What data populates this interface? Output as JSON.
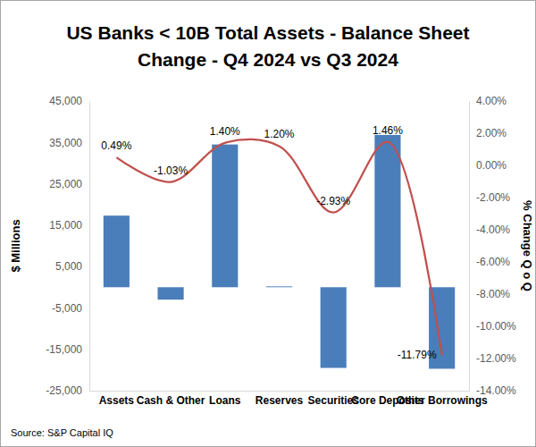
{
  "chart_data": {
    "type": "bar",
    "title": [
      "US Banks < 10B Total Assets - Balance Sheet",
      "Change - Q4 2024 vs Q3 2024"
    ],
    "ylabel": "$ Millions",
    "y2label": "% Change Q o Q",
    "source": "Source: S&P Capital IQ",
    "categories": [
      "Assets",
      "Cash & Other",
      "Loans",
      "Reserves",
      "Securities",
      "Core Deposits",
      "Other Borrowings"
    ],
    "ylim": [
      -25000,
      45000
    ],
    "yticks": [
      {
        "value": -25000,
        "label": "-25,000"
      },
      {
        "value": -15000,
        "label": "-15,000"
      },
      {
        "value": -5000,
        "label": "-5,000"
      },
      {
        "value": 5000,
        "label": "5,000"
      },
      {
        "value": 15000,
        "label": "15,000"
      },
      {
        "value": 25000,
        "label": "25,000"
      },
      {
        "value": 35000,
        "label": "35,000"
      },
      {
        "value": 45000,
        "label": "45,000"
      }
    ],
    "y2lim": [
      -14,
      4
    ],
    "y2ticks": [
      {
        "value": -14,
        "label": "-14.00%"
      },
      {
        "value": -12,
        "label": "-12.00%"
      },
      {
        "value": -10,
        "label": "-10.00%"
      },
      {
        "value": -8,
        "label": "-8.00%"
      },
      {
        "value": -6,
        "label": "-6.00%"
      },
      {
        "value": -4,
        "label": "-4.00%"
      },
      {
        "value": -2,
        "label": "-2.00%"
      },
      {
        "value": 0,
        "label": "0.00%"
      },
      {
        "value": 2,
        "label": "2.00%"
      },
      {
        "value": 4,
        "label": "4.00%"
      }
    ],
    "grid": false,
    "series": [
      {
        "type": "bar",
        "color": "#4a7ebb",
        "values": [
          17300,
          -3000,
          34500,
          200,
          -19500,
          36800,
          -19700
        ]
      },
      {
        "type": "line",
        "axis": "y2",
        "color": "#c0504d",
        "line_style": "smooth",
        "marker": "none",
        "data_labels": true,
        "values": [
          0.49,
          -1.03,
          1.4,
          1.2,
          -2.93,
          1.46,
          -11.79
        ],
        "value_labels": [
          "0.49%",
          "-1.03%",
          "1.40%",
          "1.20%",
          "-2.93%",
          "1.46%",
          "-11.79%"
        ]
      }
    ]
  }
}
